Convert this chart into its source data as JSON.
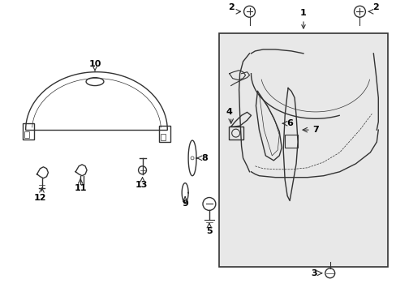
{
  "bg_color": "#ffffff",
  "box_bg": "#e8e8e8",
  "line_color": "#333333",
  "text_color": "#000000",
  "figsize": [
    4.89,
    3.6
  ],
  "dpi": 100
}
